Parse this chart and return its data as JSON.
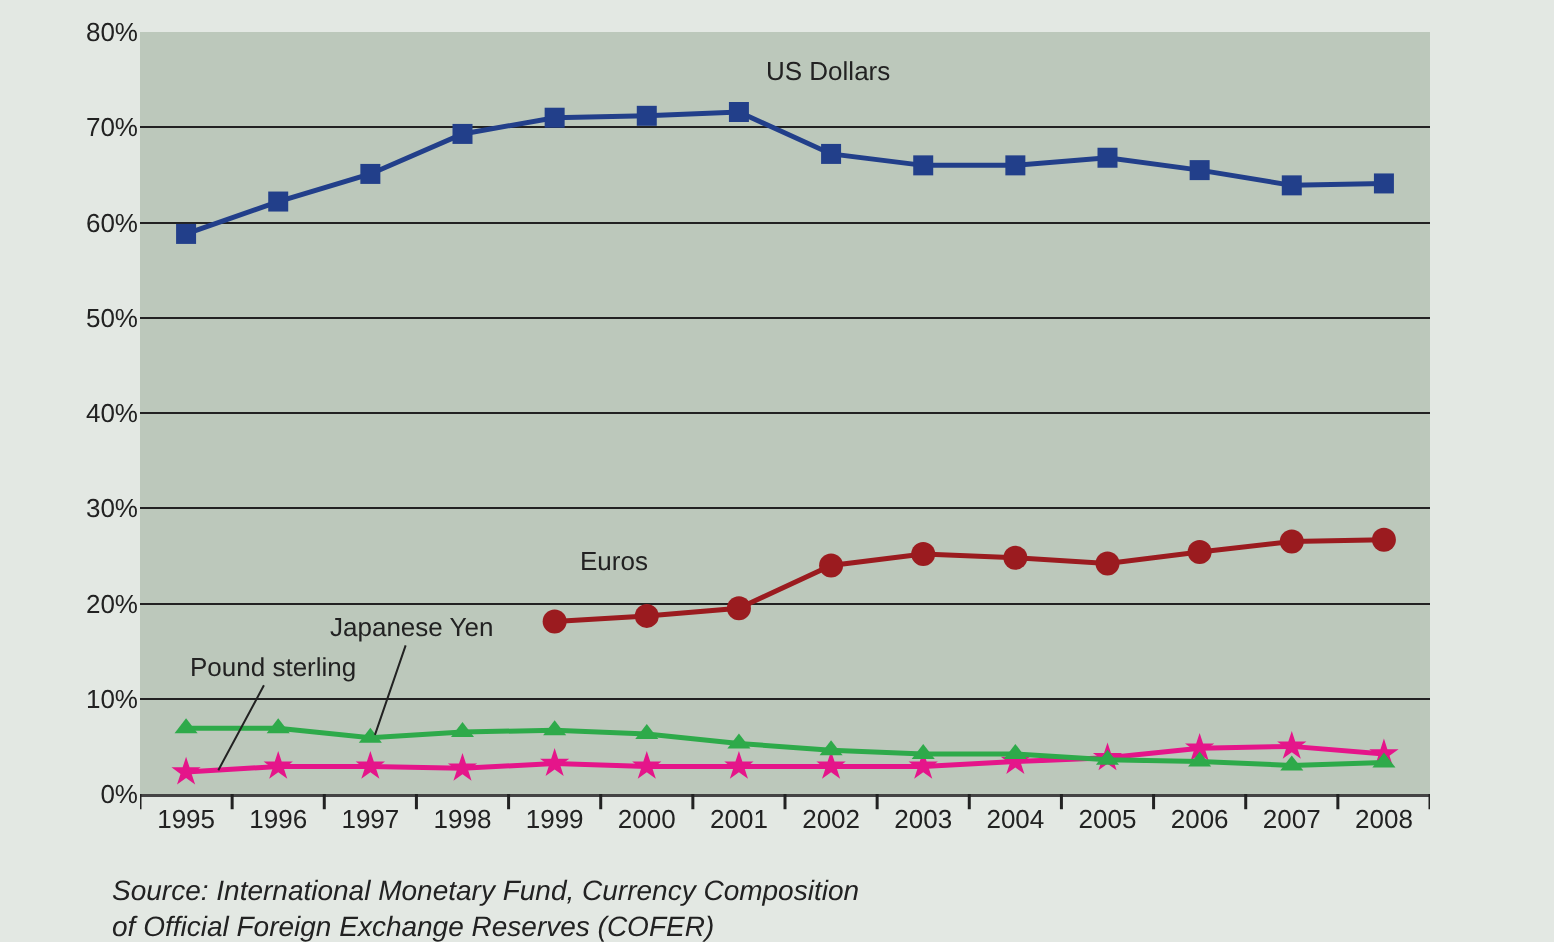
{
  "chart_data": {
    "type": "line",
    "categories": [
      "1995",
      "1996",
      "1997",
      "1998",
      "1999",
      "2000",
      "2001",
      "2002",
      "2003",
      "2004",
      "2005",
      "2006",
      "2007",
      "2008"
    ],
    "series": [
      {
        "name": "US Dollars",
        "color": "#223f8a",
        "marker": "square",
        "values": [
          58.8,
          62.2,
          65.1,
          69.3,
          71.0,
          71.2,
          71.6,
          67.2,
          66.0,
          66.0,
          66.8,
          65.5,
          63.9,
          64.1
        ]
      },
      {
        "name": "Euros",
        "color": "#9b1b1f",
        "marker": "circle",
        "values": [
          null,
          null,
          null,
          null,
          18.1,
          18.7,
          19.5,
          24.0,
          25.2,
          24.8,
          24.2,
          25.4,
          26.5,
          26.7
        ]
      },
      {
        "name": "Japanese Yen",
        "color": "#2eaa4a",
        "marker": "triangle",
        "values": [
          6.9,
          6.9,
          5.9,
          6.5,
          6.7,
          6.3,
          5.3,
          4.6,
          4.2,
          4.2,
          3.6,
          3.4,
          3.0,
          3.3
        ]
      },
      {
        "name": "Pound sterling",
        "color": "#e5158a",
        "marker": "star",
        "values": [
          2.3,
          2.9,
          2.9,
          2.7,
          3.2,
          2.9,
          2.9,
          2.9,
          2.9,
          3.4,
          3.8,
          4.8,
          5.0,
          4.2
        ]
      }
    ],
    "ylim": [
      0,
      80
    ],
    "yticks": [
      {
        "value": 0,
        "label": "0%"
      },
      {
        "value": 10,
        "label": "10%"
      },
      {
        "value": 20,
        "label": "20%"
      },
      {
        "value": 30,
        "label": "30%"
      },
      {
        "value": 40,
        "label": "40%"
      },
      {
        "value": 50,
        "label": "50%"
      },
      {
        "value": 60,
        "label": "60%"
      },
      {
        "value": 70,
        "label": "70%"
      },
      {
        "value": 80,
        "label": "80%"
      }
    ],
    "grid": "y",
    "legend": false,
    "line_style": "solid",
    "annotations": [
      "Source: International Monetary Fund, Currency Composition\nof Official Foreign Exchange Reserves (COFER)"
    ]
  }
}
